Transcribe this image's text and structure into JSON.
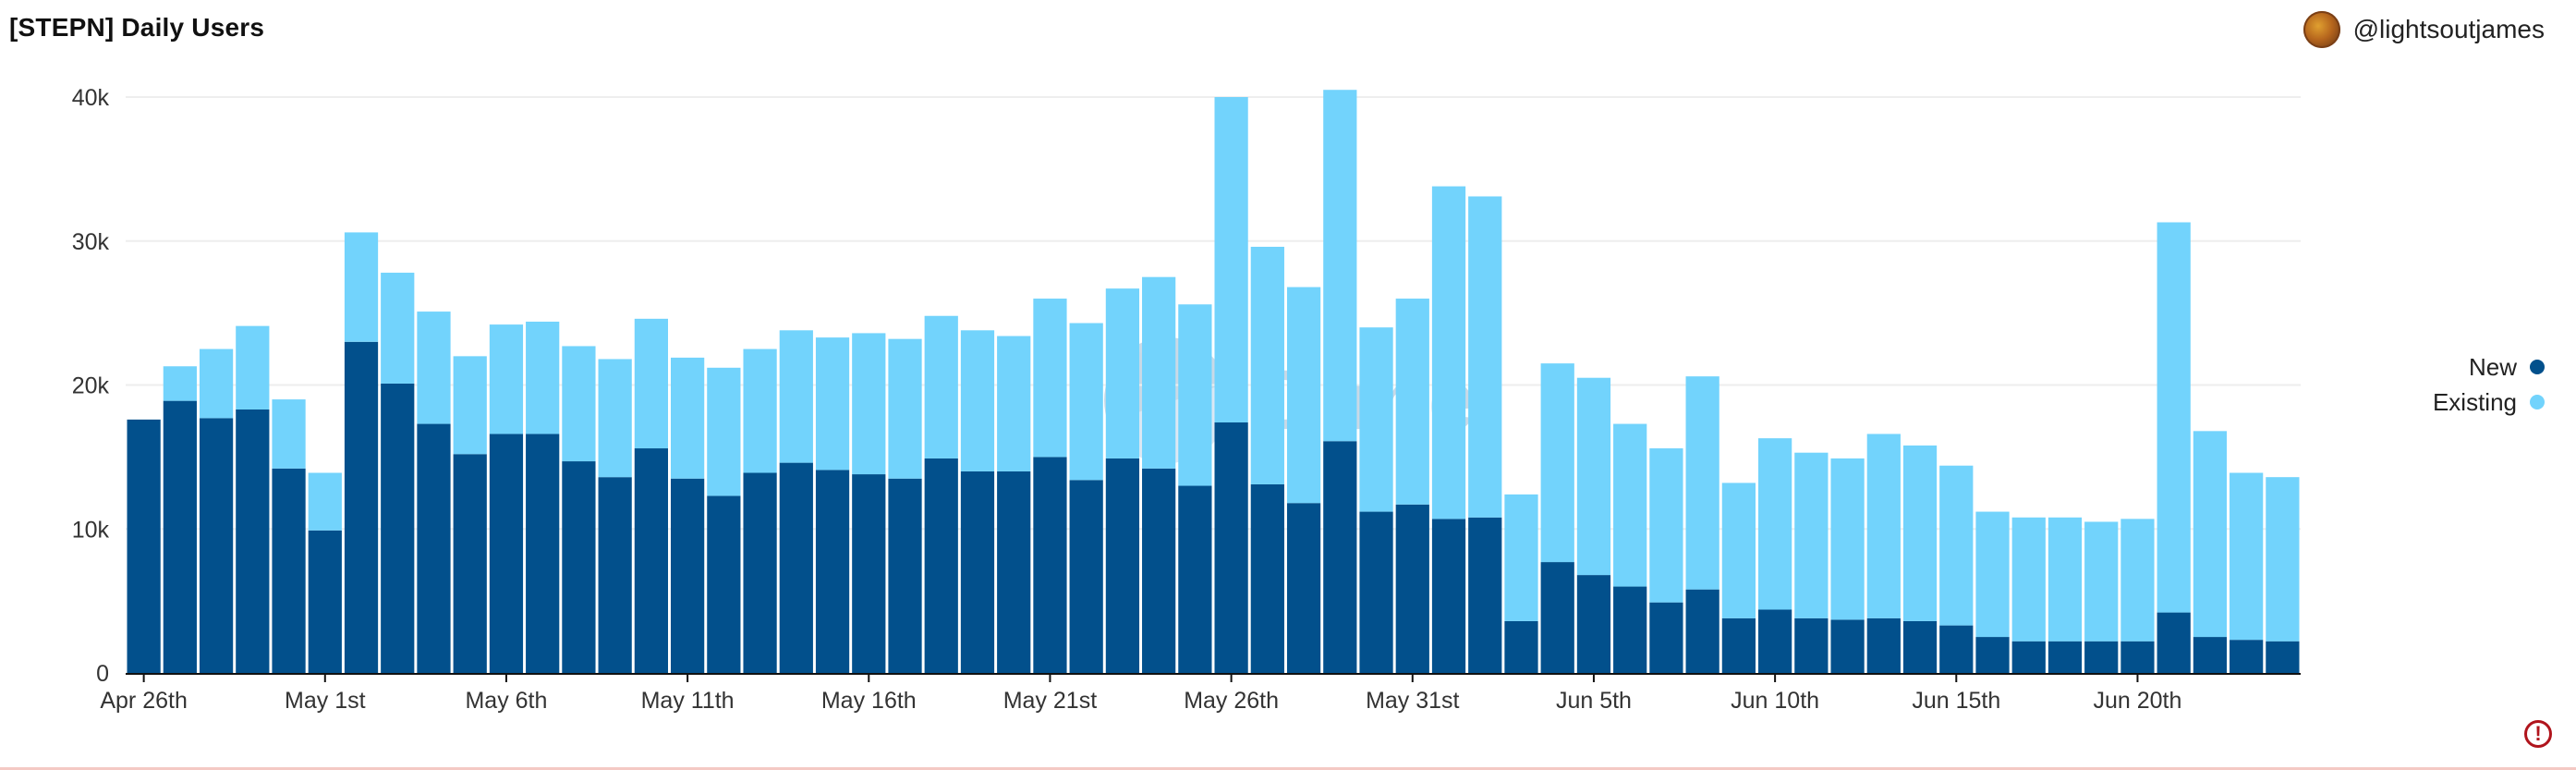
{
  "title": "[STEPN] Daily Users",
  "author": "@lightsoutjames",
  "watermark": "Dune",
  "warning_symbol": "!",
  "colors": {
    "new": "#02508c",
    "existing": "#72d3fc",
    "grid": "#eeeeee",
    "axis": "#111111"
  },
  "chart_data": {
    "type": "bar",
    "stacked": true,
    "title": "[STEPN] Daily Users",
    "xlabel": "",
    "ylabel": "",
    "ylim": [
      0,
      40000
    ],
    "yticks": [
      0,
      10000,
      20000,
      30000,
      40000
    ],
    "ytick_labels": [
      "0",
      "10k",
      "20k",
      "30k",
      "40k"
    ],
    "xtick_labels": [
      {
        "index": 0,
        "label": "Apr 26th"
      },
      {
        "index": 5,
        "label": "May 1st"
      },
      {
        "index": 10,
        "label": "May 6th"
      },
      {
        "index": 15,
        "label": "May 11th"
      },
      {
        "index": 20,
        "label": "May 16th"
      },
      {
        "index": 25,
        "label": "May 21st"
      },
      {
        "index": 30,
        "label": "May 26th"
      },
      {
        "index": 35,
        "label": "May 31st"
      },
      {
        "index": 40,
        "label": "Jun 5th"
      },
      {
        "index": 45,
        "label": "Jun 10th"
      },
      {
        "index": 50,
        "label": "Jun 15th"
      },
      {
        "index": 55,
        "label": "Jun 20th"
      }
    ],
    "legend_position": "right",
    "categories": [
      "Apr 26",
      "Apr 27",
      "Apr 28",
      "Apr 29",
      "Apr 30",
      "May 1",
      "May 2",
      "May 3",
      "May 4",
      "May 5",
      "May 6",
      "May 7",
      "May 8",
      "May 9",
      "May 10",
      "May 11",
      "May 12",
      "May 13",
      "May 14",
      "May 15",
      "May 16",
      "May 17",
      "May 18",
      "May 19",
      "May 20",
      "May 21",
      "May 22",
      "May 23",
      "May 24",
      "May 25",
      "May 26",
      "May 27",
      "May 28",
      "May 29",
      "May 30",
      "May 31",
      "Jun 1",
      "Jun 2",
      "Jun 3",
      "Jun 4",
      "Jun 5",
      "Jun 6",
      "Jun 7",
      "Jun 8",
      "Jun 9",
      "Jun 10",
      "Jun 11",
      "Jun 12",
      "Jun 13",
      "Jun 14",
      "Jun 15",
      "Jun 16",
      "Jun 17",
      "Jun 18",
      "Jun 19",
      "Jun 20",
      "Jun 21",
      "Jun 22",
      "Jun 23",
      "Jun 24"
    ],
    "series": [
      {
        "name": "New",
        "values": [
          17600,
          18900,
          17700,
          18300,
          14200,
          9900,
          23000,
          20100,
          17300,
          15200,
          16600,
          16600,
          14700,
          13600,
          15600,
          13500,
          12300,
          13900,
          14600,
          14100,
          13800,
          13500,
          14900,
          14000,
          14000,
          15000,
          13400,
          14900,
          14200,
          13000,
          17400,
          13100,
          11800,
          16100,
          11200,
          11700,
          10700,
          10800,
          3600,
          7700,
          6800,
          6000,
          4900,
          5800,
          3800,
          4400,
          3800,
          3700,
          3800,
          3600,
          3300,
          2500,
          2200,
          2200,
          2200,
          2200,
          4200,
          2500,
          2300,
          2200
        ]
      },
      {
        "name": "Existing",
        "values": [
          0,
          2400,
          4800,
          5800,
          4800,
          4000,
          7600,
          7700,
          7800,
          6800,
          7600,
          7800,
          8000,
          8200,
          9000,
          8400,
          8900,
          8600,
          9200,
          9200,
          9800,
          9700,
          9900,
          9800,
          9400,
          11000,
          10900,
          11800,
          13300,
          12600,
          22600,
          16500,
          15000,
          24400,
          12800,
          14300,
          23100,
          22300,
          8800,
          13800,
          13700,
          11300,
          10700,
          14800,
          9400,
          11900,
          11500,
          11200,
          12800,
          12200,
          11100,
          8700,
          8600,
          8600,
          8300,
          8500,
          27100,
          14300,
          11600,
          11400
        ]
      }
    ]
  }
}
